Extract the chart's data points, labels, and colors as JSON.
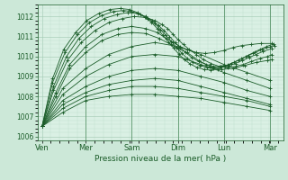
{
  "xlabel": "Pression niveau de la mer( hPa )",
  "bg_color": "#cce8d8",
  "plot_bg_color": "#daf0e4",
  "line_color": "#1a5c28",
  "grid_color_major": "#a0c8b0",
  "grid_color_minor": "#b8dcc8",
  "ylim": [
    1005.8,
    1012.6
  ],
  "yticks": [
    1006,
    1007,
    1008,
    1009,
    1010,
    1011,
    1012
  ],
  "x_day_labels": [
    "Ven",
    "Mer",
    "Sam",
    "Dim",
    "Lun",
    "Mar"
  ],
  "x_day_positions": [
    0.05,
    1.0,
    2.0,
    3.0,
    4.0,
    5.0
  ],
  "xlim": [
    -0.05,
    5.3
  ],
  "series": [
    {
      "x": [
        0.05,
        0.5,
        1.0,
        1.5,
        2.0,
        2.5,
        3.0,
        3.5,
        4.0,
        4.5,
        5.0
      ],
      "y": [
        1006.5,
        1007.2,
        1007.8,
        1008.0,
        1008.1,
        1008.1,
        1008.0,
        1007.9,
        1007.7,
        1007.5,
        1007.3
      ]
    },
    {
      "x": [
        0.05,
        0.5,
        1.0,
        1.5,
        2.0,
        2.5,
        3.0,
        3.5,
        4.0,
        4.5,
        5.0
      ],
      "y": [
        1006.5,
        1007.4,
        1008.0,
        1008.3,
        1008.5,
        1008.5,
        1008.4,
        1008.2,
        1008.0,
        1007.8,
        1007.5
      ]
    },
    {
      "x": [
        0.05,
        0.5,
        1.0,
        1.5,
        2.0,
        2.5,
        3.0,
        3.5,
        4.0,
        4.5,
        5.0
      ],
      "y": [
        1006.5,
        1007.6,
        1008.2,
        1008.6,
        1008.8,
        1008.9,
        1008.8,
        1008.5,
        1008.2,
        1007.9,
        1007.6
      ]
    },
    {
      "x": [
        0.05,
        0.5,
        1.0,
        1.5,
        2.0,
        2.5,
        3.0,
        3.5,
        4.0,
        4.5,
        5.0
      ],
      "y": [
        1006.5,
        1007.8,
        1008.5,
        1009.0,
        1009.3,
        1009.4,
        1009.3,
        1009.0,
        1008.7,
        1008.3,
        1008.0
      ]
    },
    {
      "x": [
        0.05,
        0.5,
        1.0,
        1.5,
        2.0,
        2.5,
        3.0,
        3.5,
        4.0,
        4.5,
        5.0
      ],
      "y": [
        1006.5,
        1008.1,
        1009.0,
        1009.6,
        1010.0,
        1010.1,
        1010.0,
        1009.6,
        1009.2,
        1008.8,
        1008.4
      ]
    },
    {
      "x": [
        0.05,
        0.5,
        1.0,
        1.5,
        2.0,
        2.5,
        3.0,
        3.5,
        4.0,
        4.5,
        5.0
      ],
      "y": [
        1006.5,
        1008.4,
        1009.4,
        1010.1,
        1010.5,
        1010.7,
        1010.5,
        1010.1,
        1009.6,
        1009.2,
        1008.8
      ]
    },
    {
      "x": [
        0.05,
        0.35,
        0.65,
        1.0,
        1.35,
        1.7,
        2.0,
        2.3,
        2.6,
        2.85,
        3.0,
        3.2,
        3.45,
        3.7,
        3.95,
        4.2,
        4.45,
        4.7,
        4.95,
        5.05
      ],
      "y": [
        1006.5,
        1008.0,
        1009.4,
        1010.2,
        1010.8,
        1011.1,
        1011.2,
        1011.15,
        1010.9,
        1010.6,
        1010.4,
        1010.2,
        1009.8,
        1009.5,
        1009.35,
        1009.4,
        1009.55,
        1009.7,
        1009.8,
        1009.85
      ]
    },
    {
      "x": [
        0.05,
        0.35,
        0.65,
        1.0,
        1.35,
        1.7,
        2.0,
        2.3,
        2.55,
        2.75,
        2.9,
        3.05,
        3.2,
        3.4,
        3.6,
        3.8,
        4.0,
        4.2,
        4.4,
        4.6,
        4.8,
        5.05
      ],
      "y": [
        1006.5,
        1008.2,
        1009.6,
        1010.5,
        1011.1,
        1011.4,
        1011.5,
        1011.4,
        1011.2,
        1010.9,
        1010.7,
        1010.5,
        1010.35,
        1010.2,
        1010.15,
        1010.2,
        1010.3,
        1010.45,
        1010.55,
        1010.6,
        1010.65,
        1010.65
      ]
    },
    {
      "x": [
        0.05,
        0.3,
        0.6,
        0.9,
        1.2,
        1.5,
        1.8,
        2.05,
        2.3,
        2.5,
        2.65,
        2.78,
        2.9,
        3.0,
        3.12,
        3.25,
        3.4,
        3.55,
        3.72,
        3.9,
        4.08,
        4.25,
        4.42,
        4.6,
        4.78,
        4.95,
        5.05
      ],
      "y": [
        1006.5,
        1008.3,
        1009.8,
        1010.7,
        1011.3,
        1011.7,
        1011.9,
        1012.0,
        1011.95,
        1011.8,
        1011.6,
        1011.4,
        1011.1,
        1010.85,
        1010.6,
        1010.35,
        1010.1,
        1009.85,
        1009.65,
        1009.5,
        1009.45,
        1009.5,
        1009.6,
        1009.75,
        1009.9,
        1010.0,
        1010.1
      ]
    },
    {
      "x": [
        0.05,
        0.3,
        0.58,
        0.85,
        1.12,
        1.4,
        1.68,
        1.92,
        2.12,
        2.3,
        2.45,
        2.58,
        2.7,
        2.82,
        2.94,
        3.05,
        3.17,
        3.3,
        3.45,
        3.62,
        3.78,
        3.95,
        4.1,
        4.25,
        4.4,
        4.55,
        4.7,
        4.85,
        5.05
      ],
      "y": [
        1006.5,
        1008.5,
        1010.0,
        1010.9,
        1011.5,
        1011.9,
        1012.1,
        1012.2,
        1012.15,
        1012.0,
        1011.8,
        1011.55,
        1011.3,
        1011.0,
        1010.7,
        1010.45,
        1010.2,
        1009.95,
        1009.75,
        1009.6,
        1009.5,
        1009.5,
        1009.55,
        1009.65,
        1009.8,
        1009.95,
        1010.1,
        1010.25,
        1010.4
      ]
    },
    {
      "x": [
        0.05,
        0.28,
        0.55,
        0.82,
        1.08,
        1.35,
        1.6,
        1.82,
        2.0,
        2.18,
        2.35,
        2.5,
        2.62,
        2.74,
        2.86,
        2.97,
        3.08,
        3.2,
        3.33,
        3.48,
        3.63,
        3.78,
        3.93,
        4.08,
        4.23,
        4.38,
        4.53,
        4.68,
        4.83,
        5.0,
        5.1
      ],
      "y": [
        1006.5,
        1008.7,
        1010.2,
        1011.1,
        1011.7,
        1012.05,
        1012.25,
        1012.3,
        1012.25,
        1012.1,
        1011.9,
        1011.65,
        1011.35,
        1011.05,
        1010.75,
        1010.45,
        1010.18,
        1009.92,
        1009.7,
        1009.55,
        1009.45,
        1009.42,
        1009.48,
        1009.58,
        1009.72,
        1009.88,
        1010.05,
        1010.2,
        1010.35,
        1010.48,
        1010.55
      ]
    },
    {
      "x": [
        0.05,
        0.28,
        0.52,
        0.78,
        1.02,
        1.28,
        1.52,
        1.75,
        1.95,
        2.12,
        2.28,
        2.43,
        2.56,
        2.68,
        2.8,
        2.91,
        3.02,
        3.14,
        3.27,
        3.42,
        3.57,
        3.72,
        3.87,
        4.02,
        4.17,
        4.32,
        4.48,
        4.63,
        4.78,
        4.93,
        5.08
      ],
      "y": [
        1006.5,
        1008.9,
        1010.35,
        1011.2,
        1011.8,
        1012.15,
        1012.35,
        1012.4,
        1012.35,
        1012.2,
        1011.98,
        1011.7,
        1011.38,
        1011.05,
        1010.72,
        1010.42,
        1010.12,
        1009.85,
        1009.62,
        1009.45,
        1009.35,
        1009.32,
        1009.38,
        1009.5,
        1009.65,
        1009.82,
        1010.0,
        1010.18,
        1010.35,
        1010.5,
        1010.62
      ]
    }
  ]
}
